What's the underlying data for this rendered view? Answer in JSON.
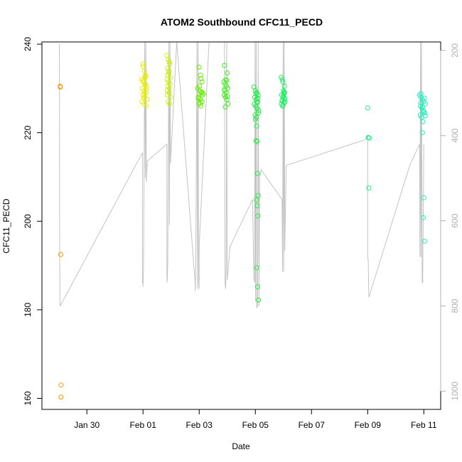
{
  "chart_data": {
    "type": "scatter",
    "title": "ATOM2 Southbound CFC11_PECD",
    "xlabel": "Date",
    "ylabel": "CFC11_PECD",
    "xlim": [
      -1.6,
      12.6
    ],
    "ylim": [
      157.5,
      240.5
    ],
    "y2lim": [
      1043,
      180
    ],
    "x_ticks": [
      {
        "value": 0,
        "label": "Jan 30"
      },
      {
        "value": 2,
        "label": "Feb 01"
      },
      {
        "value": 4,
        "label": "Feb 03"
      },
      {
        "value": 6,
        "label": "Feb 05"
      },
      {
        "value": 8,
        "label": "Feb 07"
      },
      {
        "value": 10,
        "label": "Feb 09"
      },
      {
        "value": 12,
        "label": "Feb 11"
      }
    ],
    "y_ticks": [
      160,
      180,
      200,
      220,
      240
    ],
    "y2_ticks": [
      200,
      400,
      600,
      800,
      1000
    ],
    "x_unit_note": "days relative to Jan 30",
    "groups": [
      {
        "color": "#FF9900",
        "x": [
          -0.95,
          -0.95,
          -0.93,
          -0.92,
          -0.92
        ],
        "y": [
          230.3,
          230.5,
          192.5,
          163.0,
          160.3
        ]
      },
      {
        "color": "#E8EE00",
        "x": [
          2.0,
          2.05,
          2.1,
          1.95,
          2.02,
          2.08,
          2.12,
          1.98,
          2.04,
          2.1,
          2.0,
          2.06,
          2.15,
          1.97,
          2.03,
          2.09,
          2.01,
          2.07,
          2.11,
          2.05,
          2.0,
          2.08,
          2.03,
          2.12
        ],
        "y": [
          235.5,
          234.0,
          232.5,
          232.0,
          231.5,
          231.0,
          230.5,
          230.0,
          229.5,
          229.0,
          228.5,
          228.0,
          227.5,
          227.0,
          226.5,
          233.0,
          231.8,
          230.8,
          229.8,
          228.8,
          235.0,
          232.8,
          227.8,
          226.0
        ]
      },
      {
        "color": "#CCF000",
        "x": [
          2.85,
          2.9,
          2.95,
          2.88,
          2.92,
          2.97,
          2.86,
          2.91,
          2.96,
          2.89,
          2.94,
          2.87,
          2.93,
          2.98,
          2.9,
          2.95,
          2.88,
          2.92,
          2.86,
          2.94
        ],
        "y": [
          237.5,
          236.5,
          235.5,
          234.5,
          233.5,
          232.5,
          232.0,
          231.5,
          231.0,
          230.5,
          230.0,
          229.5,
          229.0,
          228.0,
          227.0,
          226.5,
          233.0,
          234.0,
          228.5,
          236.0
        ]
      },
      {
        "color": "#66EE00",
        "x": [
          4.0,
          4.05,
          4.1,
          3.95,
          4.02,
          4.08,
          4.12,
          3.98,
          4.04,
          4.1,
          4.0,
          4.06,
          4.15,
          3.97,
          4.03,
          4.09,
          4.01,
          4.07
        ],
        "y": [
          234.8,
          233.0,
          231.5,
          230.0,
          229.5,
          229.0,
          228.5,
          228.0,
          227.5,
          227.0,
          226.5,
          226.0,
          228.8,
          227.8,
          226.8,
          229.2,
          230.5,
          232.2
        ]
      },
      {
        "color": "#44EE22",
        "x": [
          4.9,
          5.0,
          4.95,
          4.88,
          4.92,
          4.97,
          5.02,
          4.91,
          4.96,
          4.89,
          4.94,
          4.99,
          5.03,
          4.93,
          4.98,
          4.9,
          5.01
        ],
        "y": [
          235.2,
          233.5,
          232.0,
          231.5,
          231.0,
          230.5,
          230.0,
          229.5,
          229.0,
          228.5,
          228.0,
          227.5,
          226.5,
          225.8,
          231.8,
          229.8,
          228.2
        ]
      },
      {
        "color": "#22EE44",
        "x": [
          5.95,
          6.0,
          6.05,
          6.1,
          5.98,
          6.03,
          6.08,
          5.96,
          6.01,
          6.06,
          6.11,
          5.99,
          6.04,
          6.09,
          6.02,
          6.07,
          6.12,
          6.0,
          6.05,
          6.03,
          6.06,
          6.08,
          6.1,
          6.04,
          6.07,
          6.09,
          6.05,
          6.08,
          6.11
        ],
        "y": [
          230.3,
          229.5,
          229.0,
          228.5,
          228.0,
          227.5,
          227.0,
          226.5,
          226.0,
          225.5,
          224.5,
          224.0,
          223.5,
          227.8,
          228.8,
          226.8,
          225.0,
          223.0,
          221.5,
          218.2,
          218.0,
          210.8,
          205.8,
          204.8,
          203.5,
          201.2,
          189.5,
          185.2,
          182.2
        ]
      },
      {
        "color": "#22EE66",
        "x": [
          6.92,
          6.96,
          7.0,
          7.04,
          6.94,
          6.98,
          7.02,
          7.06,
          6.93,
          6.97,
          7.01,
          7.05,
          6.95,
          6.99,
          7.03,
          7.0,
          6.96,
          7.02,
          6.98,
          7.04
        ],
        "y": [
          232.5,
          232.0,
          229.5,
          229.0,
          228.5,
          228.0,
          227.5,
          227.0,
          226.5,
          226.0,
          228.8,
          227.8,
          227.2,
          226.2,
          229.2,
          228.3,
          227.3,
          226.8,
          231.5,
          230.5
        ]
      },
      {
        "color": "#22EE88",
        "x": [
          10.0,
          10.02,
          10.04,
          10.06
        ],
        "y": [
          225.6,
          218.9,
          207.5,
          218.8
        ]
      },
      {
        "color": "#22EEBB",
        "x": [
          11.85,
          11.9,
          11.95,
          12.0,
          12.05,
          11.88,
          11.93,
          11.98,
          12.03,
          11.87,
          11.92,
          11.97,
          12.02,
          11.9,
          11.95,
          12.0,
          11.95,
          12.0,
          11.98,
          12.03,
          11.9,
          12.05
        ],
        "y": [
          228.5,
          228.0,
          227.5,
          227.0,
          226.5,
          226.0,
          225.5,
          225.0,
          224.5,
          224.0,
          223.5,
          222.5,
          227.8,
          226.8,
          225.8,
          224.8,
          220.0,
          205.3,
          200.8,
          195.5,
          228.8,
          223.8
        ]
      }
    ],
    "pressure_line": [
      [
        -0.98,
        185
      ],
      [
        -0.97,
        620
      ],
      [
        -0.96,
        790
      ],
      [
        -0.95,
        800
      ],
      [
        1.98,
        440
      ],
      [
        1.98,
        745
      ],
      [
        1.99,
        745
      ],
      [
        2.0,
        755
      ],
      [
        2.02,
        700
      ],
      [
        2.04,
        440
      ],
      [
        2.06,
        180
      ],
      [
        2.08,
        500
      ],
      [
        2.1,
        180
      ],
      [
        2.12,
        510
      ],
      [
        2.15,
        460
      ],
      [
        2.85,
        420
      ],
      [
        2.85,
        730
      ],
      [
        2.86,
        745
      ],
      [
        2.88,
        700
      ],
      [
        2.9,
        470
      ],
      [
        2.92,
        180
      ],
      [
        2.94,
        610
      ],
      [
        2.96,
        180
      ],
      [
        2.98,
        465
      ],
      [
        3.2,
        180
      ],
      [
        3.85,
        740
      ],
      [
        3.86,
        765
      ],
      [
        3.88,
        700
      ],
      [
        3.9,
        440
      ],
      [
        3.92,
        180
      ],
      [
        3.94,
        760
      ],
      [
        3.96,
        180
      ],
      [
        3.98,
        740
      ],
      [
        4.0,
        760
      ],
      [
        4.0,
        660
      ],
      [
        4.35,
        180
      ],
      [
        4.9,
        180
      ],
      [
        4.92,
        745
      ],
      [
        4.94,
        760
      ],
      [
        4.96,
        700
      ],
      [
        4.98,
        180
      ],
      [
        5.0,
        740
      ],
      [
        5.1,
        660
      ],
      [
        5.9,
        550
      ],
      [
        5.95,
        740
      ],
      [
        5.97,
        745
      ],
      [
        5.99,
        180
      ],
      [
        6.01,
        790
      ],
      [
        6.03,
        180
      ],
      [
        6.05,
        805
      ],
      [
        6.08,
        800
      ],
      [
        6.1,
        180
      ],
      [
        6.13,
        800
      ],
      [
        6.15,
        500
      ],
      [
        6.2,
        480
      ],
      [
        6.95,
        550
      ],
      [
        6.97,
        720
      ],
      [
        6.99,
        180
      ],
      [
        7.01,
        720
      ],
      [
        7.03,
        180
      ],
      [
        7.05,
        670
      ],
      [
        7.1,
        470
      ],
      [
        9.9,
        410
      ],
      [
        10.0,
        400
      ],
      [
        10.0,
        690
      ],
      [
        10.02,
        690
      ],
      [
        10.04,
        780
      ],
      [
        10.04,
        780
      ],
      [
        11.5,
        470
      ],
      [
        11.85,
        420
      ],
      [
        11.86,
        685
      ],
      [
        11.88,
        180
      ],
      [
        11.9,
        685
      ],
      [
        11.92,
        180
      ],
      [
        11.94,
        745
      ],
      [
        11.96,
        745
      ],
      [
        12.0,
        420
      ]
    ]
  }
}
